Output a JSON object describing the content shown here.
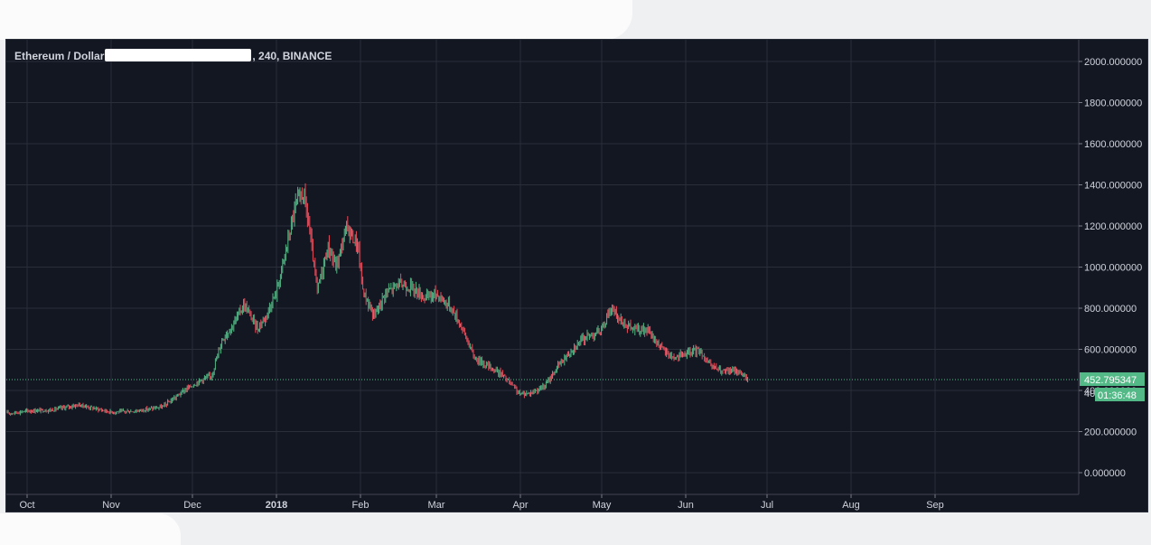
{
  "legend": {
    "symbol": "Ethereum / Dollar",
    "interval_exchange": ", 240, BINANCE"
  },
  "price_scale": {
    "labels": [
      "2000.000000",
      "1800.000000",
      "1600.000000",
      "1400.000000",
      "1200.000000",
      "1000.000000",
      "800.000000",
      "600.000000",
      "400.000000",
      "200.000000",
      "0.000000"
    ],
    "values": [
      2000,
      1800,
      1600,
      1400,
      1200,
      1000,
      800,
      600,
      400,
      200,
      0
    ],
    "last_price_label": "452.795347",
    "last_price": 452.795347,
    "countdown_label": "01:36:48",
    "partial_tick_label": "40"
  },
  "time_scale": {
    "labels": [
      "Oct",
      "Nov",
      "Dec",
      "2018",
      "Feb",
      "Mar",
      "Apr",
      "May",
      "Jun",
      "Jul",
      "Aug",
      "Sep"
    ],
    "bold": [
      false,
      false,
      false,
      true,
      false,
      false,
      false,
      false,
      false,
      false,
      false,
      false
    ]
  },
  "colors": {
    "background": "#131722",
    "grid": "#2a2e39",
    "text": "#d1d4dc",
    "up_candle": "#53b987",
    "down_candle": "#eb4d5c",
    "last_price_badge": "#53b987",
    "last_price_line": "#53b987"
  },
  "chart_data": {
    "type": "candlestick",
    "title": "Ethereum / Dollar, 240, BINANCE",
    "xlabel": "",
    "ylabel": "",
    "ylim": [
      -100,
      2100
    ],
    "grid": true,
    "x_axis_months": [
      "Oct",
      "Nov",
      "Dec",
      "2018",
      "Feb",
      "Mar",
      "Apr",
      "May",
      "Jun",
      "Jul",
      "Aug",
      "Sep"
    ],
    "x": [
      "2017-09-25",
      "2017-10-01",
      "2017-10-10",
      "2017-10-20",
      "2017-11-01",
      "2017-11-10",
      "2017-11-20",
      "2017-11-28",
      "2017-12-04",
      "2017-12-08",
      "2017-12-12",
      "2017-12-16",
      "2017-12-20",
      "2017-12-25",
      "2017-12-28",
      "2018-01-01",
      "2018-01-04",
      "2018-01-08",
      "2018-01-11",
      "2018-01-13",
      "2018-01-16",
      "2018-01-20",
      "2018-01-23",
      "2018-01-27",
      "2018-01-31",
      "2018-02-02",
      "2018-02-06",
      "2018-02-10",
      "2018-02-15",
      "2018-02-20",
      "2018-02-25",
      "2018-03-01",
      "2018-03-06",
      "2018-03-10",
      "2018-03-15",
      "2018-03-20",
      "2018-03-25",
      "2018-04-01",
      "2018-04-05",
      "2018-04-10",
      "2018-04-15",
      "2018-04-20",
      "2018-04-25",
      "2018-05-01",
      "2018-05-04",
      "2018-05-08",
      "2018-05-12",
      "2018-05-18",
      "2018-05-24",
      "2018-05-28",
      "2018-06-02",
      "2018-06-06",
      "2018-06-10",
      "2018-06-15",
      "2018-06-20",
      "2018-06-24"
    ],
    "values": [
      290,
      300,
      305,
      330,
      295,
      300,
      320,
      400,
      450,
      470,
      650,
      720,
      820,
      700,
      760,
      880,
      1050,
      1300,
      1360,
      1200,
      880,
      1100,
      1000,
      1200,
      1100,
      880,
      760,
      870,
      920,
      900,
      850,
      870,
      810,
      720,
      560,
      520,
      480,
      380,
      390,
      420,
      520,
      600,
      660,
      690,
      800,
      740,
      700,
      690,
      590,
      560,
      580,
      600,
      520,
      490,
      500,
      452.8
    ]
  }
}
